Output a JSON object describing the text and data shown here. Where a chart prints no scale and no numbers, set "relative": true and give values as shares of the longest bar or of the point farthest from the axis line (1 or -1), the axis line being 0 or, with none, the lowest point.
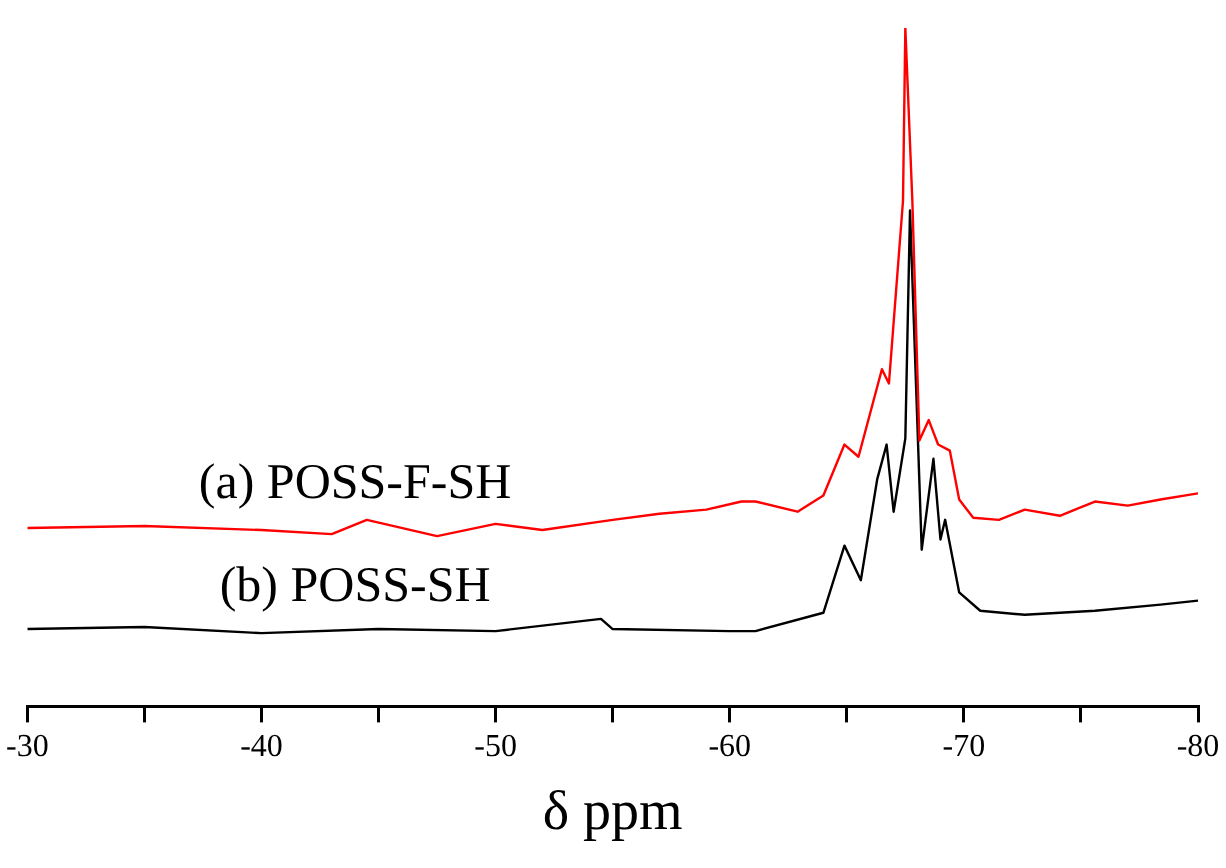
{
  "chart_data": {
    "type": "line",
    "xlabel": "δ ppm",
    "relative": true,
    "legend": false,
    "grid": false,
    "marker": "none",
    "line_style": "solid",
    "xlim": [
      -30,
      -80
    ],
    "xticks": [
      -30,
      {
        "value": -35,
        "label": null
      },
      -40,
      {
        "value": -45,
        "label": null
      },
      -50,
      {
        "value": -55,
        "label": null
      },
      -60,
      {
        "value": -65,
        "label": null
      },
      -70,
      {
        "value": -75,
        "label": null
      },
      -80
    ],
    "series": [
      {
        "name": "(a) POSS-F-SH",
        "color": "#ff0000",
        "x": [
          -30,
          -35,
          -40,
          -43,
          -44.5,
          -47.5,
          -50,
          -52,
          -55,
          -57,
          -59,
          -60.5,
          -61.1,
          -62.9,
          -64.0,
          -64.9,
          -65.5,
          -66.5,
          -66.8,
          -67.4,
          -67.5,
          -67.8,
          -68.1,
          -68.5,
          -68.9,
          -69.4,
          -69.8,
          -70.4,
          -71.5,
          -72.6,
          -74.1,
          -75.6,
          -77.0,
          -78.4,
          -80
        ],
        "values": [
          0.263,
          0.266,
          0.26,
          0.254,
          0.275,
          0.251,
          0.269,
          0.26,
          0.275,
          0.284,
          0.29,
          0.302,
          0.302,
          0.287,
          0.311,
          0.386,
          0.368,
          0.497,
          0.476,
          0.745,
          1,
          0.745,
          0.392,
          0.422,
          0.386,
          0.377,
          0.305,
          0.278,
          0.275,
          0.29,
          0.281,
          0.302,
          0.296,
          0.305,
          0.314
        ]
      },
      {
        "name": "(b) POSS-SH",
        "color": "#000000",
        "x": [
          -30,
          -35,
          -40,
          -45,
          -50,
          -54.5,
          -55,
          -60,
          -61.1,
          -64.0,
          -64.9,
          -65.6,
          -66.3,
          -66.7,
          -67.0,
          -67.5,
          -67.7,
          -68.2,
          -68.7,
          -69.0,
          -69.2,
          -69.8,
          -70.7,
          -72.6,
          -75.6,
          -78.4,
          -80
        ],
        "values": [
          0.114,
          0.117,
          0.108,
          0.114,
          0.111,
          0.129,
          0.114,
          0.111,
          0.111,
          0.138,
          0.237,
          0.186,
          0.335,
          0.386,
          0.287,
          0.395,
          0.731,
          0.231,
          0.365,
          0.246,
          0.275,
          0.168,
          0.141,
          0.135,
          0.141,
          0.15,
          0.156
        ]
      }
    ]
  }
}
